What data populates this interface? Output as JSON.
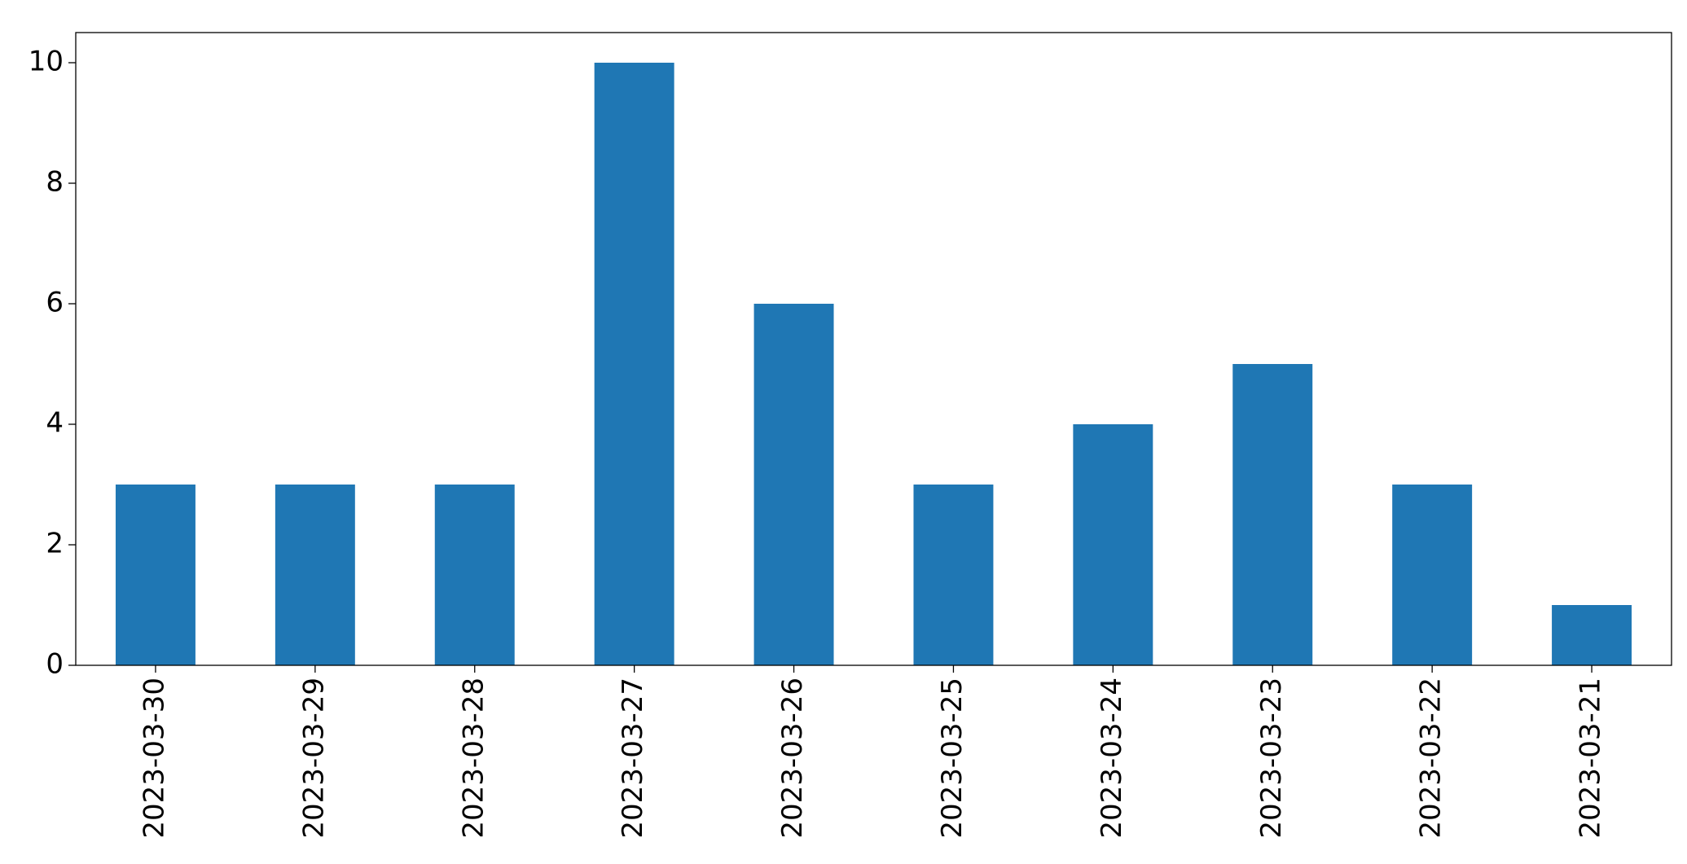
{
  "chart_data": {
    "type": "bar",
    "categories": [
      "2023-03-30",
      "2023-03-29",
      "2023-03-28",
      "2023-03-27",
      "2023-03-26",
      "2023-03-25",
      "2023-03-24",
      "2023-03-23",
      "2023-03-22",
      "2023-03-21"
    ],
    "values": [
      3,
      3,
      3,
      10,
      6,
      3,
      4,
      5,
      3,
      1
    ],
    "color": "#1f77b4",
    "ylim": [
      0,
      10.5
    ],
    "yticks": [
      0,
      2,
      4,
      6,
      8,
      10
    ],
    "grid": false
  }
}
